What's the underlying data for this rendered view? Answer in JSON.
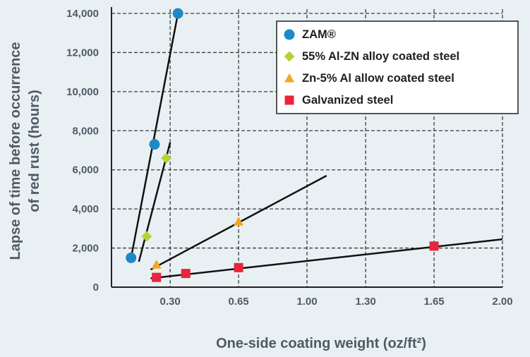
{
  "chart_data": {
    "type": "scatter",
    "xlabel": "One-side coating weight (oz/ft²)",
    "ylabel": "Lapse of time before occurrence of red rust (hours)",
    "ylabel_lines": [
      "Lapse of time before occurrence",
      "of red rust (hours)"
    ],
    "x_ticks": [
      "0.30",
      "0.65",
      "1.00",
      "1.30",
      "1.65",
      "2.00"
    ],
    "y_ticks": [
      "0",
      "2,000",
      "4,000",
      "6,000",
      "8,000",
      "10,000",
      "12,000",
      "14,000"
    ],
    "x_tick_values": [
      0.3,
      0.65,
      1.0,
      1.3,
      1.65,
      2.0
    ],
    "y_tick_values": [
      0,
      2000,
      4000,
      6000,
      8000,
      10000,
      12000,
      14000
    ],
    "xlim": [
      0.0,
      2.0
    ],
    "ylim": [
      0,
      14000
    ],
    "grid": true,
    "legend_position": "top-right",
    "series": [
      {
        "name": "ZAM®",
        "marker": "circle",
        "color": "#1e88c8",
        "points": [
          [
            0.1,
            1500
          ],
          [
            0.22,
            7300
          ],
          [
            0.34,
            14000
          ]
        ],
        "trend": [
          [
            0.1,
            1500
          ],
          [
            0.34,
            14000
          ]
        ]
      },
      {
        "name": "55% Al-ZN alloy coated steel",
        "marker": "diamond",
        "color": "#b5d337",
        "points": [
          [
            0.18,
            2600
          ],
          [
            0.28,
            6600
          ]
        ],
        "trend": [
          [
            0.14,
            1300
          ],
          [
            0.3,
            7400
          ]
        ]
      },
      {
        "name": "Zn-5% Al allow coated steel",
        "marker": "triangle",
        "color": "#f5a623",
        "points": [
          [
            0.23,
            1150
          ],
          [
            0.65,
            3350
          ]
        ],
        "trend": [
          [
            0.2,
            900
          ],
          [
            1.1,
            5700
          ]
        ]
      },
      {
        "name": "Galvanized steel",
        "marker": "square",
        "color": "#e8253a",
        "points": [
          [
            0.23,
            500
          ],
          [
            0.38,
            700
          ],
          [
            0.65,
            1000
          ],
          [
            1.65,
            2100
          ]
        ],
        "trend": [
          [
            0.2,
            450
          ],
          [
            2.0,
            2450
          ]
        ]
      }
    ]
  }
}
